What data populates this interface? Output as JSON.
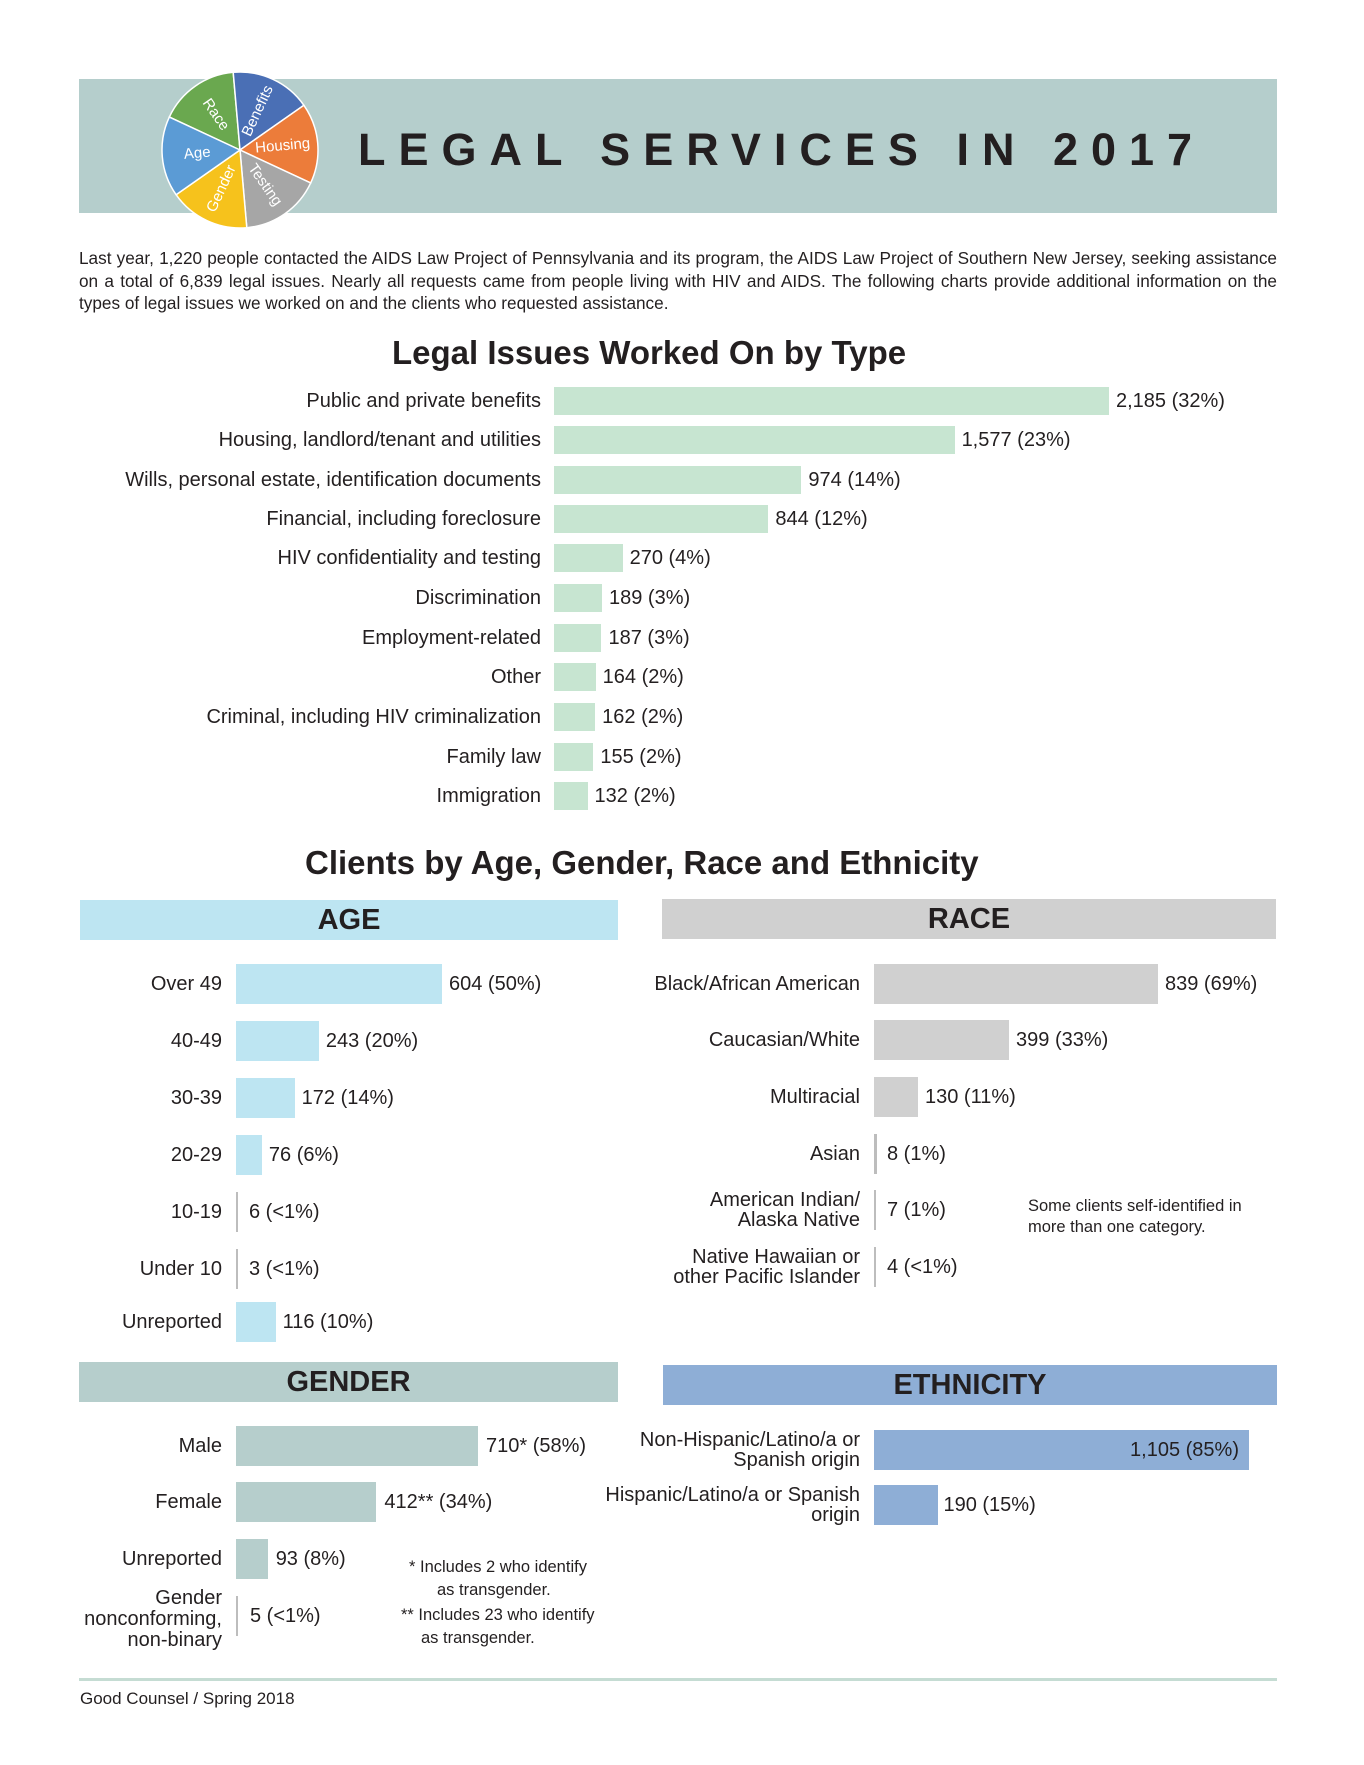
{
  "header": {
    "title": "LEGAL SERVICES IN 2017",
    "logo_labels": [
      "Race",
      "Benefits",
      "Housing",
      "Testing",
      "Gender",
      "Age"
    ],
    "logo_colors": [
      "#6aa84f",
      "#4a6fb5",
      "#ec7c3a",
      "#a6a6a6",
      "#f6c21c",
      "#5b9bd5"
    ]
  },
  "intro": "Last year, 1,220 people contacted the AIDS Law Project of Pennsylvania and its program, the AIDS Law Project of Southern New Jersey, seeking assistance on a total of 6,839 legal issues. Nearly all requests came from people living with HIV and AIDS. The following charts provide additional information on the types of legal issues we worked on and the clients who requested assistance.",
  "colors": {
    "issues": "#c7e5d1",
    "age": "#bde5f2",
    "race": "#d0d0d0",
    "gender": "#b6cecc",
    "ethnicity": "#8eaed6",
    "banner": "#b5cecc"
  },
  "chart_data": [
    {
      "type": "bar",
      "title": "Legal Issues Worked On by Type",
      "categories": [
        "Public and private benefits",
        "Housing, landlord/tenant and utilities",
        "Wills, personal estate, identification documents",
        "Financial, including foreclosure",
        "HIV confidentiality and testing",
        "Discrimination",
        "Employment-related",
        "Other",
        "Criminal, including HIV criminalization",
        "Family law",
        "Immigration"
      ],
      "values": [
        2185,
        1577,
        974,
        844,
        270,
        189,
        187,
        164,
        162,
        155,
        132
      ],
      "labels": [
        "2,185 (32%)",
        "1,577 (23%)",
        "974 (14%)",
        "844 (12%)",
        "270 (4%)",
        "189 (3%)",
        "187 (3%)",
        "164 (2%)",
        "162 (2%)",
        "155 (2%)",
        "132 (2%)"
      ]
    },
    {
      "type": "bar",
      "title": "AGE",
      "categories": [
        "Over 49",
        "40-49",
        "30-39",
        "20-29",
        "10-19",
        "Under 10",
        "Unreported"
      ],
      "values": [
        604,
        243,
        172,
        76,
        6,
        3,
        116
      ],
      "labels": [
        "604 (50%)",
        "243 (20%)",
        "172 (14%)",
        "76 (6%)",
        "6 (<1%)",
        "3 (<1%)",
        "116 (10%)"
      ]
    },
    {
      "type": "bar",
      "title": "RACE",
      "categories": [
        "Black/African American",
        "Caucasian/White",
        "Multiracial",
        "Asian",
        "American Indian/ Alaska Native",
        "Native Hawaiian or other Pacific Islander"
      ],
      "values": [
        839,
        399,
        130,
        8,
        7,
        4
      ],
      "labels": [
        "839 (69%)",
        "399 (33%)",
        "130 (11%)",
        "8 (1%)",
        "7 (1%)",
        "4 (<1%)"
      ],
      "note": "Some clients self-identified in more than one category."
    },
    {
      "type": "bar",
      "title": "GENDER",
      "categories": [
        "Male",
        "Female",
        "Unreported",
        "Gender nonconforming, non-binary"
      ],
      "values": [
        710,
        412,
        93,
        5
      ],
      "labels": [
        "710* (58%)",
        "412** (34%)",
        "93 (8%)",
        "5 (<1%)"
      ],
      "notes": [
        "* Includes 2 who identify",
        "as transgender.",
        "** Includes 23 who identify",
        "as transgender."
      ]
    },
    {
      "type": "bar",
      "title": "ETHNICITY",
      "categories": [
        "Non-Hispanic/Latino/a or Spanish origin",
        "Hispanic/Latino/a or Spanish origin"
      ],
      "values": [
        1105,
        190
      ],
      "labels": [
        "1,105 (85%)",
        "190 (15%)"
      ]
    }
  ],
  "clients_title": "Clients by Age, Gender, Race and Ethnicity",
  "footer": "Good Counsel / Spring 2018"
}
